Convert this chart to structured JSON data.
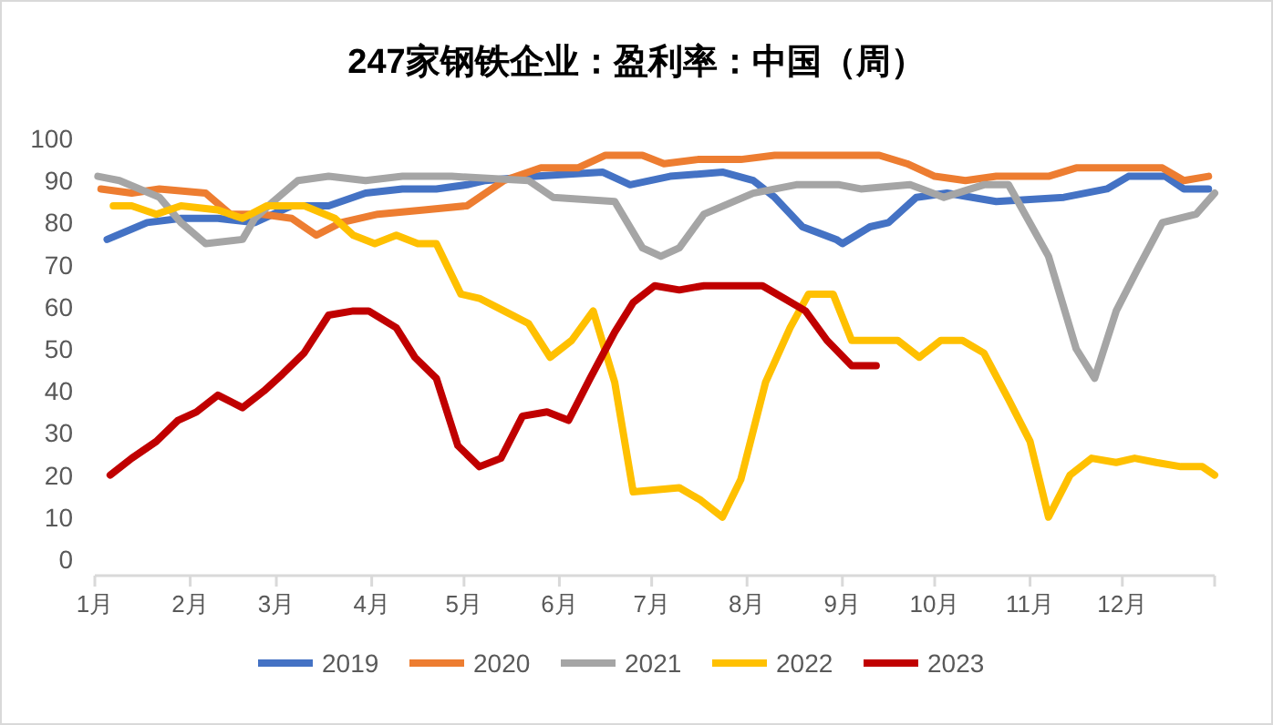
{
  "chart_data": {
    "type": "line",
    "title": "247家钢铁企业：盈利率：中国（周）",
    "ylim": [
      0,
      100
    ],
    "yticks": [
      0,
      10,
      20,
      30,
      40,
      50,
      60,
      70,
      80,
      90,
      100
    ],
    "xlim": [
      "--01-01",
      "--12-31"
    ],
    "xticks": [
      {
        "value": "--01-01",
        "label": "1月"
      },
      {
        "value": "--02-01",
        "label": "2月"
      },
      {
        "value": "--03-01",
        "label": "3月"
      },
      {
        "value": "--04-01",
        "label": "4月"
      },
      {
        "value": "--05-01",
        "label": "5月"
      },
      {
        "value": "--06-01",
        "label": "6月"
      },
      {
        "value": "--07-01",
        "label": "7月"
      },
      {
        "value": "--08-01",
        "label": "8月"
      },
      {
        "value": "--09-01",
        "label": "9月"
      },
      {
        "value": "--10-01",
        "label": "10月"
      },
      {
        "value": "--11-01",
        "label": "11月"
      },
      {
        "value": "--12-01",
        "label": "12月"
      },
      {
        "value": "--12-31",
        "label": null
      }
    ],
    "grid": false,
    "legend": "bottom",
    "marker": "none",
    "line_style": "solid",
    "series": [
      {
        "name": "2019",
        "color": "#4472c4",
        "x": [
          "--01-05",
          "--01-18",
          "--01-29",
          "--02-10",
          "--02-22",
          "--03-06",
          "--03-18",
          "--03-30",
          "--04-11",
          "--04-22",
          "--05-02",
          "--05-08",
          "--05-24",
          "--06-15",
          "--06-24",
          "--07-07",
          "--07-24",
          "--08-03",
          "--08-10",
          "--08-19",
          "--08-30",
          "--09-01",
          "--09-10",
          "--09-16",
          "--09-25",
          "--10-05",
          "--10-21",
          "--11-12",
          "--11-26",
          "--12-03",
          "--12-15",
          "--12-21",
          "--12-29"
        ],
        "values": [
          76,
          80,
          81,
          81,
          80,
          84,
          84,
          87,
          88,
          88,
          89,
          90,
          91,
          92,
          89,
          91,
          92,
          90,
          86,
          79,
          76,
          75,
          79,
          80,
          86,
          87,
          85,
          86,
          88,
          91,
          91,
          88,
          88
        ]
      },
      {
        "name": "2020",
        "color": "#ed7d31",
        "x": [
          "--01-03",
          "--01-13",
          "--01-22",
          "--02-06",
          "--02-14",
          "--02-24",
          "--03-06",
          "--03-14",
          "--03-22",
          "--04-03",
          "--04-18",
          "--05-02",
          "--05-14",
          "--05-26",
          "--06-07",
          "--06-16",
          "--06-28",
          "--07-05",
          "--07-16",
          "--07-30",
          "--08-10",
          "--08-31",
          "--09-13",
          "--09-22",
          "--10-01",
          "--10-11",
          "--10-21",
          "--11-07",
          "--11-16",
          "--12-14",
          "--12-21",
          "--12-29"
        ],
        "values": [
          88,
          87,
          88,
          87,
          82,
          82,
          81,
          77,
          80,
          82,
          83,
          84,
          90,
          93,
          93,
          96,
          96,
          94,
          95,
          95,
          96,
          96,
          96,
          94,
          91,
          90,
          91,
          91,
          93,
          93,
          90,
          91
        ]
      },
      {
        "name": "2021",
        "color": "#a5a5a5",
        "x": [
          "--01-02",
          "--01-09",
          "--01-22",
          "--01-29",
          "--02-06",
          "--02-18",
          "--02-22",
          "--02-28",
          "--03-08",
          "--03-18",
          "--03-30",
          "--04-11",
          "--04-27",
          "--05-22",
          "--05-30",
          "--06-19",
          "--06-28",
          "--07-04",
          "--07-10",
          "--07-18",
          "--08-03",
          "--08-17",
          "--08-31",
          "--09-07",
          "--09-23",
          "--10-04",
          "--10-17",
          "--10-25",
          "--11-07",
          "--11-16",
          "--11-22",
          "--11-29",
          "--12-06",
          "--12-14",
          "--12-25",
          "--12-31"
        ],
        "values": [
          91,
          90,
          86,
          80,
          75,
          76,
          81,
          85,
          90,
          91,
          90,
          91,
          91,
          90,
          86,
          85,
          74,
          72,
          74,
          82,
          87,
          89,
          89,
          88,
          89,
          86,
          89,
          89,
          72,
          50,
          43,
          59,
          69,
          80,
          82,
          87
        ]
      },
      {
        "name": "2022",
        "color": "#ffc000",
        "x": [
          "--01-07",
          "--01-13",
          "--01-21",
          "--01-29",
          "--02-10",
          "--02-18",
          "--02-26",
          "--03-10",
          "--03-20",
          "--03-26",
          "--04-02",
          "--04-09",
          "--04-16",
          "--04-22",
          "--04-30",
          "--05-06",
          "--05-14",
          "--05-22",
          "--05-29",
          "--06-05",
          "--06-12",
          "--06-19",
          "--06-25",
          "--07-10",
          "--07-17",
          "--07-24",
          "--07-30",
          "--08-07",
          "--08-15",
          "--08-21",
          "--08-29",
          "--09-04",
          "--09-12",
          "--09-19",
          "--09-26",
          "--10-03",
          "--10-10",
          "--10-17",
          "--10-25",
          "--11-01",
          "--11-07",
          "--11-14",
          "--11-21",
          "--11-29",
          "--12-05",
          "--12-12",
          "--12-20",
          "--12-27",
          "--12-31"
        ],
        "values": [
          84,
          84,
          82,
          84,
          83,
          81,
          84,
          84,
          81,
          77,
          75,
          77,
          75,
          75,
          63,
          62,
          59,
          56,
          48,
          52,
          59,
          42,
          16,
          17,
          14,
          10,
          19,
          42,
          55,
          63,
          63,
          52,
          52,
          52,
          48,
          52,
          52,
          49,
          38,
          28,
          10,
          20,
          24,
          23,
          24,
          23,
          22,
          22,
          20
        ]
      },
      {
        "name": "2023",
        "color": "#c00000",
        "x": [
          "--01-06",
          "--01-13",
          "--01-21",
          "--01-28",
          "--02-03",
          "--02-10",
          "--02-18",
          "--02-25",
          "--03-03",
          "--03-10",
          "--03-18",
          "--03-26",
          "--03-31",
          "--04-09",
          "--04-15",
          "--04-22",
          "--04-29",
          "--05-06",
          "--05-13",
          "--05-20",
          "--05-28",
          "--06-04",
          "--06-11",
          "--06-19",
          "--06-25",
          "--07-02",
          "--07-10",
          "--07-18",
          "--07-28",
          "--08-06",
          "--08-13",
          "--08-20",
          "--08-27",
          "--09-04",
          "--09-12"
        ],
        "values": [
          20,
          24,
          28,
          33,
          35,
          39,
          36,
          40,
          44,
          49,
          58,
          59,
          59,
          55,
          48,
          43,
          27,
          22,
          24,
          34,
          35,
          33,
          43,
          54,
          61,
          65,
          64,
          65,
          65,
          65,
          62,
          59,
          52,
          46,
          46
        ]
      }
    ]
  }
}
